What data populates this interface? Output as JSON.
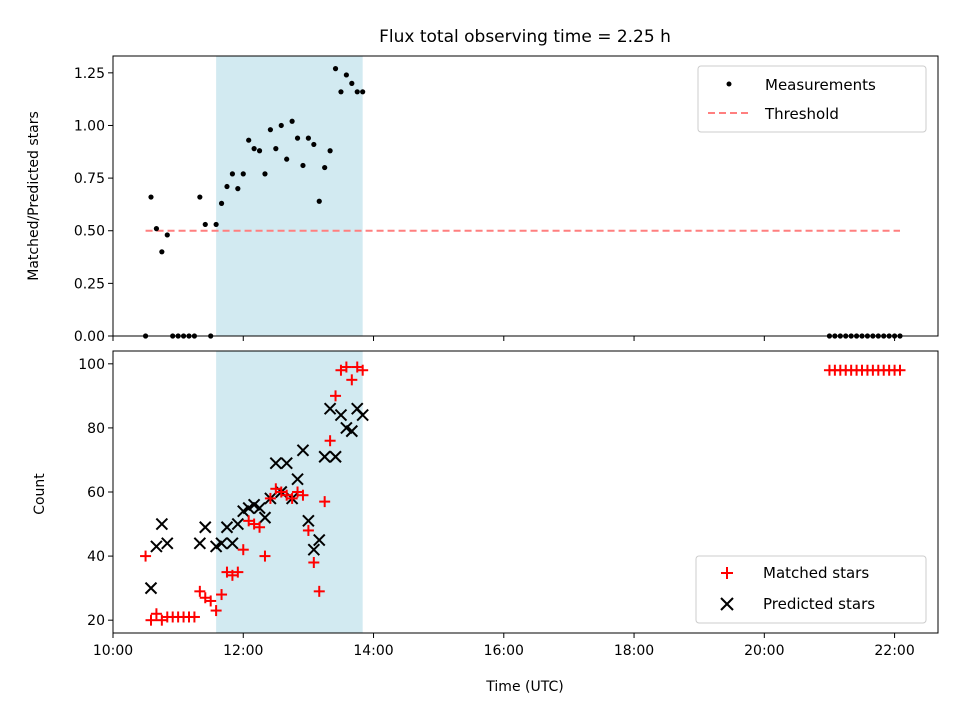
{
  "chart_data": [
    {
      "type": "scatter",
      "title": "Flux total observing time = 2.25 h",
      "xlabel": "",
      "ylabel": "Matched/Predicted stars",
      "xlim": [
        "10:00",
        "22:40"
      ],
      "ylim": [
        0,
        1.33
      ],
      "yticks": [
        "0.00",
        "0.25",
        "0.50",
        "0.75",
        "1.00",
        "1.25"
      ],
      "highlight_span": {
        "start": "11:35",
        "end": "13:50",
        "color": "#add8e6"
      },
      "legend": {
        "placement": "top-right",
        "entries": [
          "Measurements",
          "Threshold"
        ]
      },
      "series": [
        {
          "name": "Measurements",
          "color": "#000000",
          "marker": "dot",
          "points": [
            {
              "t": "10:30",
              "v": 0.0
            },
            {
              "t": "10:35",
              "v": 0.66
            },
            {
              "t": "10:40",
              "v": 0.51
            },
            {
              "t": "10:45",
              "v": 0.4
            },
            {
              "t": "10:50",
              "v": 0.48
            },
            {
              "t": "10:55",
              "v": 0.0
            },
            {
              "t": "11:00",
              "v": 0.0
            },
            {
              "t": "11:05",
              "v": 0.0
            },
            {
              "t": "11:10",
              "v": 0.0
            },
            {
              "t": "11:15",
              "v": 0.0
            },
            {
              "t": "11:20",
              "v": 0.66
            },
            {
              "t": "11:25",
              "v": 0.53
            },
            {
              "t": "11:30",
              "v": 0.0
            },
            {
              "t": "11:35",
              "v": 0.53
            },
            {
              "t": "11:40",
              "v": 0.63
            },
            {
              "t": "11:45",
              "v": 0.71
            },
            {
              "t": "11:50",
              "v": 0.77
            },
            {
              "t": "11:55",
              "v": 0.7
            },
            {
              "t": "12:00",
              "v": 0.77
            },
            {
              "t": "12:05",
              "v": 0.93
            },
            {
              "t": "12:10",
              "v": 0.89
            },
            {
              "t": "12:15",
              "v": 0.88
            },
            {
              "t": "12:20",
              "v": 0.77
            },
            {
              "t": "12:25",
              "v": 0.98
            },
            {
              "t": "12:30",
              "v": 0.89
            },
            {
              "t": "12:35",
              "v": 1.0
            },
            {
              "t": "12:40",
              "v": 0.84
            },
            {
              "t": "12:45",
              "v": 1.02
            },
            {
              "t": "12:50",
              "v": 0.94
            },
            {
              "t": "12:55",
              "v": 0.81
            },
            {
              "t": "13:00",
              "v": 0.94
            },
            {
              "t": "13:05",
              "v": 0.91
            },
            {
              "t": "13:10",
              "v": 0.64
            },
            {
              "t": "13:15",
              "v": 0.8
            },
            {
              "t": "13:20",
              "v": 0.88
            },
            {
              "t": "13:25",
              "v": 1.27
            },
            {
              "t": "13:30",
              "v": 1.16
            },
            {
              "t": "13:35",
              "v": 1.24
            },
            {
              "t": "13:40",
              "v": 1.2
            },
            {
              "t": "13:45",
              "v": 1.16
            },
            {
              "t": "13:50",
              "v": 1.16
            },
            {
              "t": "21:00",
              "v": 0.0
            },
            {
              "t": "21:05",
              "v": 0.0
            },
            {
              "t": "21:10",
              "v": 0.0
            },
            {
              "t": "21:15",
              "v": 0.0
            },
            {
              "t": "21:20",
              "v": 0.0
            },
            {
              "t": "21:25",
              "v": 0.0
            },
            {
              "t": "21:30",
              "v": 0.0
            },
            {
              "t": "21:35",
              "v": 0.0
            },
            {
              "t": "21:40",
              "v": 0.0
            },
            {
              "t": "21:45",
              "v": 0.0
            },
            {
              "t": "21:50",
              "v": 0.0
            },
            {
              "t": "21:55",
              "v": 0.0
            },
            {
              "t": "22:00",
              "v": 0.0
            },
            {
              "t": "22:05",
              "v": 0.0
            }
          ]
        },
        {
          "name": "Threshold",
          "color": "#ff7f7f",
          "style": "dashed",
          "points": [
            {
              "t": "10:30",
              "v": 0.5
            },
            {
              "t": "22:05",
              "v": 0.5
            }
          ]
        }
      ]
    },
    {
      "type": "scatter",
      "title": "",
      "xlabel": "Time (UTC)",
      "ylabel": "Count",
      "xlim": [
        "10:00",
        "22:40"
      ],
      "ylim": [
        16,
        104
      ],
      "yticks": [
        "20",
        "40",
        "60",
        "80",
        "100"
      ],
      "xticks": [
        "10:00",
        "12:00",
        "14:00",
        "16:00",
        "18:00",
        "20:00",
        "22:00"
      ],
      "highlight_span": {
        "start": "11:35",
        "end": "13:50",
        "color": "#add8e6"
      },
      "legend": {
        "placement": "bottom-right",
        "entries": [
          "Matched stars",
          "Predicted stars"
        ]
      },
      "series": [
        {
          "name": "Matched stars",
          "color": "#ff0000",
          "marker": "plus",
          "points": [
            {
              "t": "10:30",
              "v": 40
            },
            {
              "t": "10:35",
              "v": 20
            },
            {
              "t": "10:40",
              "v": 22
            },
            {
              "t": "10:45",
              "v": 20
            },
            {
              "t": "10:50",
              "v": 21
            },
            {
              "t": "10:55",
              "v": 21
            },
            {
              "t": "11:00",
              "v": 21
            },
            {
              "t": "11:05",
              "v": 21
            },
            {
              "t": "11:10",
              "v": 21
            },
            {
              "t": "11:15",
              "v": 21
            },
            {
              "t": "11:20",
              "v": 29
            },
            {
              "t": "11:25",
              "v": 27
            },
            {
              "t": "11:30",
              "v": 26
            },
            {
              "t": "11:35",
              "v": 23
            },
            {
              "t": "11:40",
              "v": 28
            },
            {
              "t": "11:45",
              "v": 35
            },
            {
              "t": "11:50",
              "v": 34
            },
            {
              "t": "11:55",
              "v": 35
            },
            {
              "t": "12:00",
              "v": 42
            },
            {
              "t": "12:05",
              "v": 51
            },
            {
              "t": "12:10",
              "v": 50
            },
            {
              "t": "12:15",
              "v": 49
            },
            {
              "t": "12:20",
              "v": 40
            },
            {
              "t": "12:25",
              "v": 58
            },
            {
              "t": "12:30",
              "v": 61
            },
            {
              "t": "12:35",
              "v": 60
            },
            {
              "t": "12:40",
              "v": 59
            },
            {
              "t": "12:45",
              "v": 58
            },
            {
              "t": "12:50",
              "v": 60
            },
            {
              "t": "12:55",
              "v": 59
            },
            {
              "t": "13:00",
              "v": 48
            },
            {
              "t": "13:05",
              "v": 38
            },
            {
              "t": "13:10",
              "v": 29
            },
            {
              "t": "13:15",
              "v": 57
            },
            {
              "t": "13:20",
              "v": 76
            },
            {
              "t": "13:25",
              "v": 90
            },
            {
              "t": "13:30",
              "v": 98
            },
            {
              "t": "13:35",
              "v": 99
            },
            {
              "t": "13:40",
              "v": 95
            },
            {
              "t": "13:45",
              "v": 99
            },
            {
              "t": "13:50",
              "v": 98
            },
            {
              "t": "21:00",
              "v": 98
            },
            {
              "t": "21:05",
              "v": 98
            },
            {
              "t": "21:10",
              "v": 98
            },
            {
              "t": "21:15",
              "v": 98
            },
            {
              "t": "21:20",
              "v": 98
            },
            {
              "t": "21:25",
              "v": 98
            },
            {
              "t": "21:30",
              "v": 98
            },
            {
              "t": "21:35",
              "v": 98
            },
            {
              "t": "21:40",
              "v": 98
            },
            {
              "t": "21:45",
              "v": 98
            },
            {
              "t": "21:50",
              "v": 98
            },
            {
              "t": "21:55",
              "v": 98
            },
            {
              "t": "22:00",
              "v": 98
            },
            {
              "t": "22:05",
              "v": 98
            }
          ]
        },
        {
          "name": "Predicted stars",
          "color": "#000000",
          "marker": "x",
          "points": [
            {
              "t": "10:35",
              "v": 30
            },
            {
              "t": "10:40",
              "v": 43
            },
            {
              "t": "10:45",
              "v": 50
            },
            {
              "t": "10:50",
              "v": 44
            },
            {
              "t": "11:20",
              "v": 44
            },
            {
              "t": "11:25",
              "v": 49
            },
            {
              "t": "11:35",
              "v": 43
            },
            {
              "t": "11:40",
              "v": 44
            },
            {
              "t": "11:45",
              "v": 49
            },
            {
              "t": "11:50",
              "v": 44
            },
            {
              "t": "11:55",
              "v": 50
            },
            {
              "t": "12:00",
              "v": 54
            },
            {
              "t": "12:05",
              "v": 55
            },
            {
              "t": "12:10",
              "v": 56
            },
            {
              "t": "12:15",
              "v": 55
            },
            {
              "t": "12:20",
              "v": 52
            },
            {
              "t": "12:25",
              "v": 58
            },
            {
              "t": "12:30",
              "v": 69
            },
            {
              "t": "12:35",
              "v": 60
            },
            {
              "t": "12:40",
              "v": 69
            },
            {
              "t": "12:45",
              "v": 58
            },
            {
              "t": "12:50",
              "v": 64
            },
            {
              "t": "12:55",
              "v": 73
            },
            {
              "t": "13:00",
              "v": 51
            },
            {
              "t": "13:05",
              "v": 42
            },
            {
              "t": "13:10",
              "v": 45
            },
            {
              "t": "13:15",
              "v": 71
            },
            {
              "t": "13:20",
              "v": 86
            },
            {
              "t": "13:25",
              "v": 71
            },
            {
              "t": "13:30",
              "v": 84
            },
            {
              "t": "13:35",
              "v": 80
            },
            {
              "t": "13:40",
              "v": 79
            },
            {
              "t": "13:45",
              "v": 86
            },
            {
              "t": "13:50",
              "v": 84
            }
          ]
        }
      ]
    }
  ]
}
